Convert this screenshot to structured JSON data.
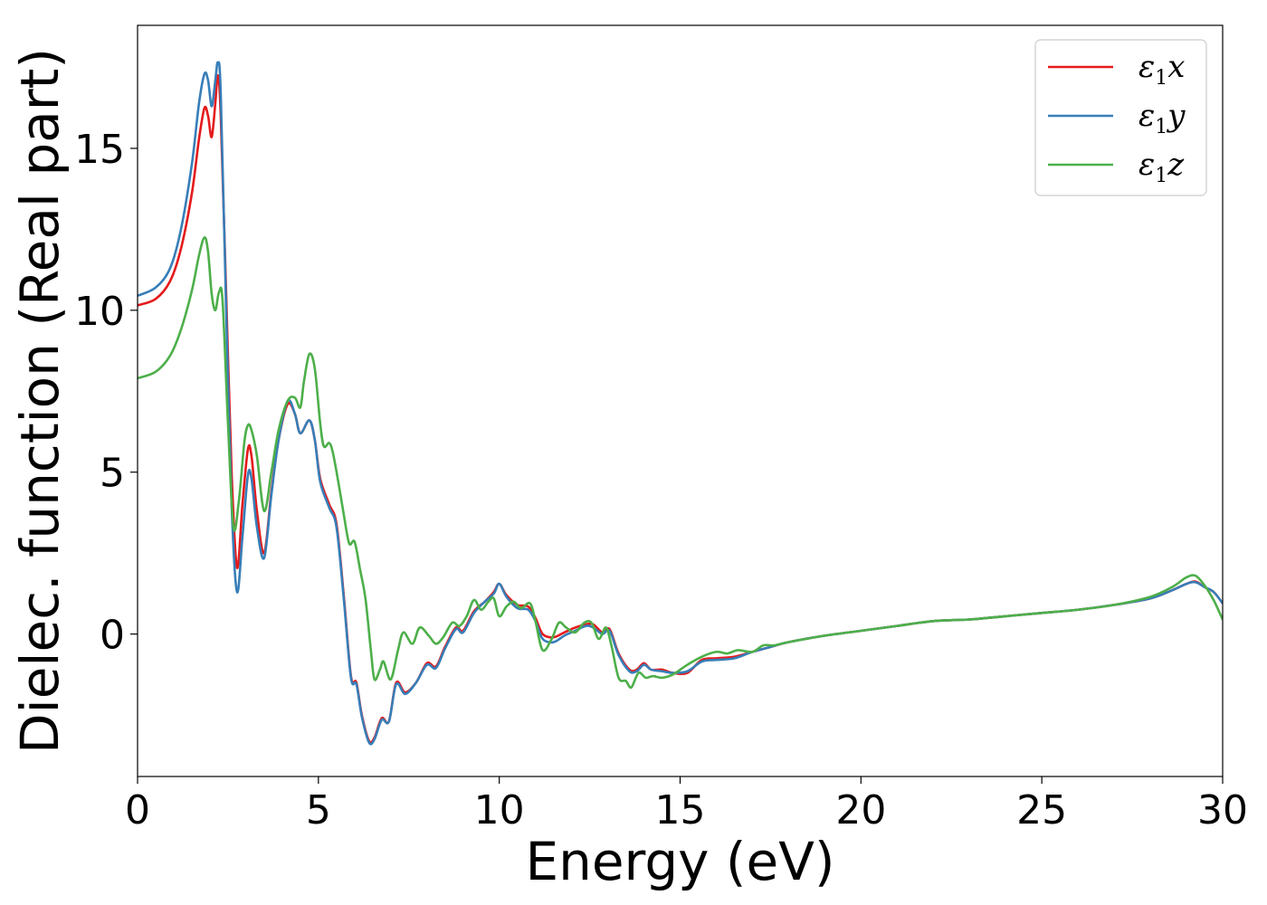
{
  "chart_data": {
    "type": "line",
    "title": "",
    "xlabel": "Energy (eV)",
    "ylabel": "Dielec. function (Real part)",
    "xlim": [
      0,
      30
    ],
    "ylim": [
      -4.4,
      18.8
    ],
    "xticks": [
      0,
      5,
      10,
      15,
      20,
      25,
      30
    ],
    "yticks": [
      0,
      5,
      10,
      15
    ],
    "grid": false,
    "legend_position": "top-right",
    "series": [
      {
        "name": "ε₁x",
        "name_main": "ε",
        "name_sub": "1",
        "name_suffix": "x",
        "color": "#e41a1c",
        "points": [
          [
            0,
            10.15
          ],
          [
            0.5,
            10.35
          ],
          [
            0.9,
            10.9
          ],
          [
            1.2,
            11.9
          ],
          [
            1.5,
            13.6
          ],
          [
            1.7,
            15.3
          ],
          [
            1.85,
            16.25
          ],
          [
            1.95,
            16.0
          ],
          [
            2.05,
            15.35
          ],
          [
            2.15,
            16.4
          ],
          [
            2.22,
            17.25
          ],
          [
            2.3,
            16.0
          ],
          [
            2.45,
            10.5
          ],
          [
            2.6,
            5.0
          ],
          [
            2.75,
            2.05
          ],
          [
            2.9,
            4.0
          ],
          [
            3.05,
            5.7
          ],
          [
            3.15,
            5.5
          ],
          [
            3.3,
            3.8
          ],
          [
            3.5,
            2.5
          ],
          [
            3.7,
            4.4
          ],
          [
            3.9,
            6.0
          ],
          [
            4.15,
            7.1
          ],
          [
            4.35,
            6.8
          ],
          [
            4.5,
            6.2
          ],
          [
            4.75,
            6.6
          ],
          [
            4.9,
            6.0
          ],
          [
            5.05,
            4.8
          ],
          [
            5.3,
            4.0
          ],
          [
            5.5,
            3.4
          ],
          [
            5.7,
            1.2
          ],
          [
            5.9,
            -1.3
          ],
          [
            6.05,
            -1.5
          ],
          [
            6.2,
            -2.5
          ],
          [
            6.4,
            -3.3
          ],
          [
            6.55,
            -3.2
          ],
          [
            6.75,
            -2.6
          ],
          [
            6.95,
            -2.7
          ],
          [
            7.15,
            -1.5
          ],
          [
            7.4,
            -1.8
          ],
          [
            7.7,
            -1.5
          ],
          [
            8.0,
            -0.9
          ],
          [
            8.25,
            -1.0
          ],
          [
            8.5,
            -0.4
          ],
          [
            8.8,
            0.2
          ],
          [
            9.0,
            0.1
          ],
          [
            9.3,
            0.7
          ],
          [
            9.6,
            1.0
          ],
          [
            9.85,
            1.3
          ],
          [
            10.0,
            1.55
          ],
          [
            10.2,
            1.2
          ],
          [
            10.5,
            0.9
          ],
          [
            10.8,
            0.85
          ],
          [
            11.0,
            0.5
          ],
          [
            11.2,
            0.0
          ],
          [
            11.5,
            -0.1
          ],
          [
            11.8,
            0.05
          ],
          [
            12.1,
            0.2
          ],
          [
            12.4,
            0.3
          ],
          [
            12.6,
            0.3
          ],
          [
            12.85,
            0.05
          ],
          [
            13.05,
            0.15
          ],
          [
            13.3,
            -0.6
          ],
          [
            13.6,
            -1.1
          ],
          [
            13.8,
            -1.1
          ],
          [
            14.0,
            -0.9
          ],
          [
            14.2,
            -1.1
          ],
          [
            14.5,
            -1.1
          ],
          [
            14.8,
            -1.2
          ],
          [
            15.2,
            -1.2
          ],
          [
            15.6,
            -0.8
          ],
          [
            16.0,
            -0.75
          ],
          [
            16.5,
            -0.7
          ],
          [
            17.0,
            -0.55
          ],
          [
            17.5,
            -0.4
          ],
          [
            18.0,
            -0.25
          ],
          [
            19.0,
            -0.05
          ],
          [
            20.0,
            0.1
          ],
          [
            21.0,
            0.25
          ],
          [
            22.0,
            0.4
          ],
          [
            23.0,
            0.45
          ],
          [
            24.0,
            0.55
          ],
          [
            25.0,
            0.65
          ],
          [
            26.0,
            0.75
          ],
          [
            27.0,
            0.9
          ],
          [
            28.0,
            1.1
          ],
          [
            28.6,
            1.35
          ],
          [
            29.0,
            1.55
          ],
          [
            29.25,
            1.62
          ],
          [
            29.5,
            1.45
          ],
          [
            29.75,
            1.3
          ],
          [
            30.0,
            0.95
          ]
        ]
      },
      {
        "name": "ε₁y",
        "name_main": "ε",
        "name_sub": "1",
        "name_suffix": "y",
        "color": "#377eb8",
        "points": [
          [
            0,
            10.45
          ],
          [
            0.5,
            10.7
          ],
          [
            0.9,
            11.3
          ],
          [
            1.2,
            12.5
          ],
          [
            1.5,
            14.5
          ],
          [
            1.7,
            16.4
          ],
          [
            1.85,
            17.3
          ],
          [
            1.95,
            17.1
          ],
          [
            2.05,
            16.3
          ],
          [
            2.15,
            17.1
          ],
          [
            2.22,
            17.65
          ],
          [
            2.3,
            16.7
          ],
          [
            2.45,
            10.0
          ],
          [
            2.6,
            4.0
          ],
          [
            2.75,
            1.3
          ],
          [
            2.9,
            3.0
          ],
          [
            3.05,
            4.9
          ],
          [
            3.15,
            4.8
          ],
          [
            3.3,
            3.3
          ],
          [
            3.5,
            2.35
          ],
          [
            3.7,
            4.3
          ],
          [
            3.9,
            6.0
          ],
          [
            4.15,
            7.2
          ],
          [
            4.35,
            6.8
          ],
          [
            4.5,
            6.2
          ],
          [
            4.75,
            6.6
          ],
          [
            4.9,
            6.0
          ],
          [
            5.05,
            4.7
          ],
          [
            5.3,
            3.9
          ],
          [
            5.5,
            3.3
          ],
          [
            5.7,
            1.1
          ],
          [
            5.9,
            -1.35
          ],
          [
            6.05,
            -1.55
          ],
          [
            6.2,
            -2.55
          ],
          [
            6.4,
            -3.35
          ],
          [
            6.55,
            -3.25
          ],
          [
            6.75,
            -2.65
          ],
          [
            6.95,
            -2.7
          ],
          [
            7.15,
            -1.55
          ],
          [
            7.4,
            -1.85
          ],
          [
            7.7,
            -1.5
          ],
          [
            8.0,
            -0.95
          ],
          [
            8.25,
            -1.05
          ],
          [
            8.5,
            -0.45
          ],
          [
            8.8,
            0.15
          ],
          [
            9.0,
            0.05
          ],
          [
            9.3,
            0.65
          ],
          [
            9.6,
            1.0
          ],
          [
            9.85,
            1.25
          ],
          [
            10.0,
            1.55
          ],
          [
            10.2,
            1.15
          ],
          [
            10.5,
            0.8
          ],
          [
            10.8,
            0.75
          ],
          [
            11.0,
            0.4
          ],
          [
            11.2,
            -0.15
          ],
          [
            11.5,
            -0.25
          ],
          [
            11.8,
            -0.05
          ],
          [
            12.1,
            0.1
          ],
          [
            12.4,
            0.25
          ],
          [
            12.6,
            0.2
          ],
          [
            12.85,
            0.0
          ],
          [
            13.05,
            0.1
          ],
          [
            13.3,
            -0.65
          ],
          [
            13.6,
            -1.15
          ],
          [
            13.8,
            -1.15
          ],
          [
            14.0,
            -0.95
          ],
          [
            14.2,
            -1.1
          ],
          [
            14.5,
            -1.15
          ],
          [
            14.8,
            -1.2
          ],
          [
            15.2,
            -1.15
          ],
          [
            15.6,
            -0.85
          ],
          [
            16.0,
            -0.8
          ],
          [
            16.5,
            -0.75
          ],
          [
            17.0,
            -0.55
          ],
          [
            17.5,
            -0.4
          ],
          [
            18.0,
            -0.25
          ],
          [
            19.0,
            -0.05
          ],
          [
            20.0,
            0.1
          ],
          [
            21.0,
            0.25
          ],
          [
            22.0,
            0.4
          ],
          [
            23.0,
            0.45
          ],
          [
            24.0,
            0.55
          ],
          [
            25.0,
            0.65
          ],
          [
            26.0,
            0.75
          ],
          [
            27.0,
            0.9
          ],
          [
            28.0,
            1.1
          ],
          [
            28.6,
            1.35
          ],
          [
            29.0,
            1.55
          ],
          [
            29.25,
            1.6
          ],
          [
            29.5,
            1.45
          ],
          [
            29.75,
            1.3
          ],
          [
            30.0,
            0.95
          ]
        ]
      },
      {
        "name": "ε₁z",
        "name_main": "ε",
        "name_sub": "1",
        "name_suffix": "z",
        "color": "#4daf4a",
        "points": [
          [
            0,
            7.9
          ],
          [
            0.5,
            8.1
          ],
          [
            0.9,
            8.6
          ],
          [
            1.2,
            9.4
          ],
          [
            1.5,
            10.6
          ],
          [
            1.7,
            11.7
          ],
          [
            1.85,
            12.25
          ],
          [
            1.95,
            11.8
          ],
          [
            2.05,
            10.5
          ],
          [
            2.15,
            10.0
          ],
          [
            2.25,
            10.55
          ],
          [
            2.35,
            10.3
          ],
          [
            2.5,
            6.5
          ],
          [
            2.65,
            3.3
          ],
          [
            2.8,
            4.1
          ],
          [
            2.95,
            5.9
          ],
          [
            3.05,
            6.45
          ],
          [
            3.15,
            6.3
          ],
          [
            3.3,
            5.5
          ],
          [
            3.5,
            3.8
          ],
          [
            3.7,
            5.0
          ],
          [
            3.9,
            6.3
          ],
          [
            4.15,
            7.2
          ],
          [
            4.35,
            7.3
          ],
          [
            4.5,
            7.0
          ],
          [
            4.6,
            7.8
          ],
          [
            4.75,
            8.65
          ],
          [
            4.9,
            8.2
          ],
          [
            5.05,
            6.5
          ],
          [
            5.15,
            5.8
          ],
          [
            5.3,
            5.9
          ],
          [
            5.4,
            5.6
          ],
          [
            5.55,
            4.7
          ],
          [
            5.7,
            3.7
          ],
          [
            5.85,
            2.8
          ],
          [
            6.0,
            2.85
          ],
          [
            6.15,
            2.0
          ],
          [
            6.3,
            1.1
          ],
          [
            6.45,
            -0.5
          ],
          [
            6.55,
            -1.4
          ],
          [
            6.7,
            -1.1
          ],
          [
            6.8,
            -0.85
          ],
          [
            7.0,
            -1.4
          ],
          [
            7.2,
            -0.5
          ],
          [
            7.35,
            0.05
          ],
          [
            7.6,
            -0.3
          ],
          [
            7.8,
            0.2
          ],
          [
            8.05,
            -0.05
          ],
          [
            8.25,
            -0.3
          ],
          [
            8.45,
            -0.1
          ],
          [
            8.7,
            0.35
          ],
          [
            8.9,
            0.25
          ],
          [
            9.1,
            0.55
          ],
          [
            9.3,
            1.05
          ],
          [
            9.5,
            0.75
          ],
          [
            9.7,
            1.0
          ],
          [
            9.85,
            1.1
          ],
          [
            10.0,
            0.55
          ],
          [
            10.2,
            0.85
          ],
          [
            10.4,
            1.0
          ],
          [
            10.6,
            0.8
          ],
          [
            10.85,
            0.95
          ],
          [
            11.0,
            0.4
          ],
          [
            11.2,
            -0.5
          ],
          [
            11.45,
            -0.15
          ],
          [
            11.65,
            0.35
          ],
          [
            11.85,
            0.2
          ],
          [
            12.1,
            0.05
          ],
          [
            12.35,
            0.35
          ],
          [
            12.55,
            0.35
          ],
          [
            12.75,
            -0.15
          ],
          [
            12.95,
            0.2
          ],
          [
            13.1,
            -0.35
          ],
          [
            13.3,
            -1.35
          ],
          [
            13.5,
            -1.45
          ],
          [
            13.65,
            -1.65
          ],
          [
            13.85,
            -1.2
          ],
          [
            14.05,
            -1.35
          ],
          [
            14.25,
            -1.3
          ],
          [
            14.5,
            -1.35
          ],
          [
            14.8,
            -1.25
          ],
          [
            15.2,
            -0.95
          ],
          [
            15.6,
            -0.7
          ],
          [
            16.0,
            -0.55
          ],
          [
            16.3,
            -0.6
          ],
          [
            16.6,
            -0.5
          ],
          [
            17.0,
            -0.55
          ],
          [
            17.3,
            -0.35
          ],
          [
            17.6,
            -0.35
          ],
          [
            18.0,
            -0.25
          ],
          [
            19.0,
            -0.05
          ],
          [
            20.0,
            0.1
          ],
          [
            21.0,
            0.25
          ],
          [
            22.0,
            0.4
          ],
          [
            23.0,
            0.45
          ],
          [
            24.0,
            0.55
          ],
          [
            25.0,
            0.65
          ],
          [
            26.0,
            0.75
          ],
          [
            27.0,
            0.9
          ],
          [
            28.0,
            1.15
          ],
          [
            28.6,
            1.45
          ],
          [
            29.0,
            1.75
          ],
          [
            29.25,
            1.8
          ],
          [
            29.5,
            1.5
          ],
          [
            29.75,
            1.05
          ],
          [
            30.0,
            0.45
          ]
        ]
      }
    ]
  }
}
